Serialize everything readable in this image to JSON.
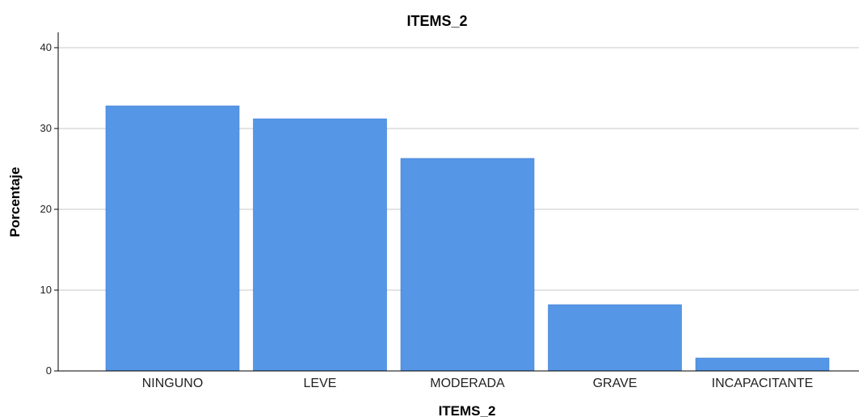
{
  "chart_data": {
    "type": "bar",
    "title": "ITEMS_2",
    "xlabel": "ITEMS_2",
    "ylabel": "Porcentaje",
    "categories": [
      "NINGUNO",
      "LEVE",
      "MODERADA",
      "GRAVE",
      "INCAPACITANTE"
    ],
    "values": [
      32.8,
      31.2,
      26.3,
      8.2,
      1.6
    ],
    "ylim": [
      0,
      40
    ],
    "yticks": [
      0,
      10,
      20,
      30,
      40
    ],
    "grid": true,
    "bar_color": "#5596e6"
  }
}
